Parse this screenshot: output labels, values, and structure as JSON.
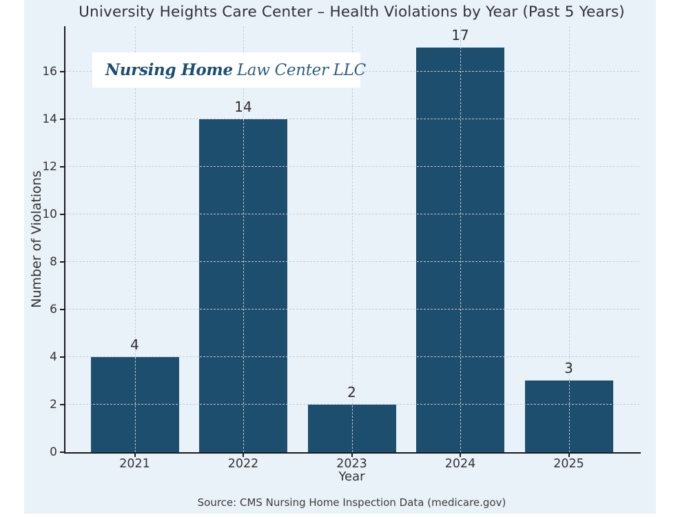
{
  "page": {
    "background": "#ffffff",
    "figure_background": "#e9f1f9"
  },
  "logo": {
    "icon": "house-medical-cross-icon",
    "name_bold": "Nursing Home",
    "name_regular": "Law Center LLC",
    "colors": {
      "roof": "#2c86c8",
      "cross": "#2aa0e4",
      "text_bold": "#1b4e72",
      "text_regular": "#2d5f84",
      "background": "#ffffff"
    }
  },
  "chart_data": {
    "type": "bar",
    "title": "University Heights Care Center – Health Violations by Year (Past 5 Years)",
    "categories": [
      "2021",
      "2022",
      "2023",
      "2024",
      "2025"
    ],
    "values": [
      4,
      14,
      2,
      17,
      3
    ],
    "value_labels": [
      "4",
      "14",
      "2",
      "17",
      "3"
    ],
    "xlabel": "Year",
    "ylabel": "Number of Violations",
    "ylim": [
      0,
      17.9
    ],
    "yticks": [
      0,
      2,
      4,
      6,
      8,
      10,
      12,
      14,
      16
    ],
    "grid": "dashed, both axes, drawn above bars",
    "legend": "none",
    "bar_color": "#1e4e6d",
    "grid_color": "#c4ced8",
    "axis_color": "#1a1a1a",
    "label_color": "#333333"
  },
  "footer": {
    "source": "Source: CMS Nursing Home Inspection Data (medicare.gov)"
  }
}
